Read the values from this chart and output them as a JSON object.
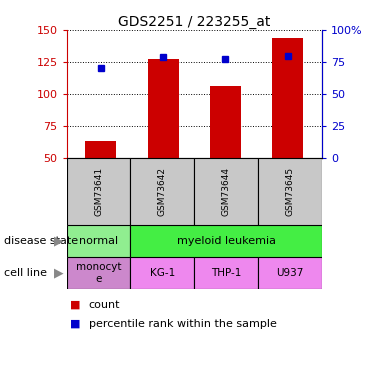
{
  "title": "GDS2251 / 223255_at",
  "samples": [
    "GSM73641",
    "GSM73642",
    "GSM73644",
    "GSM73645"
  ],
  "counts": [
    63,
    127,
    106,
    144
  ],
  "percentiles": [
    70,
    79,
    77,
    80
  ],
  "ylim_left": [
    50,
    150
  ],
  "ylim_right": [
    0,
    100
  ],
  "yticks_left": [
    50,
    75,
    100,
    125,
    150
  ],
  "yticks_right": [
    0,
    25,
    50,
    75,
    100
  ],
  "ytick_labels_right": [
    "0",
    "25",
    "50",
    "75",
    "100%"
  ],
  "bar_color": "#cc0000",
  "dot_color": "#0000cc",
  "disease_state": [
    [
      "normal",
      1
    ],
    [
      "myeloid leukemia",
      3
    ]
  ],
  "disease_color_normal": "#90ee90",
  "disease_color_leukemia": "#44ee44",
  "cell_line_labels": [
    "monocyt\ne",
    "KG-1",
    "THP-1",
    "U937"
  ],
  "cell_color_monocyte": "#cc88cc",
  "cell_color_others": "#ee88ee",
  "sample_bg": "#c8c8c8",
  "legend_count_color": "#cc0000",
  "legend_pct_color": "#0000cc",
  "bar_width": 0.5,
  "figsize": [
    3.7,
    3.75
  ],
  "dpi": 100
}
